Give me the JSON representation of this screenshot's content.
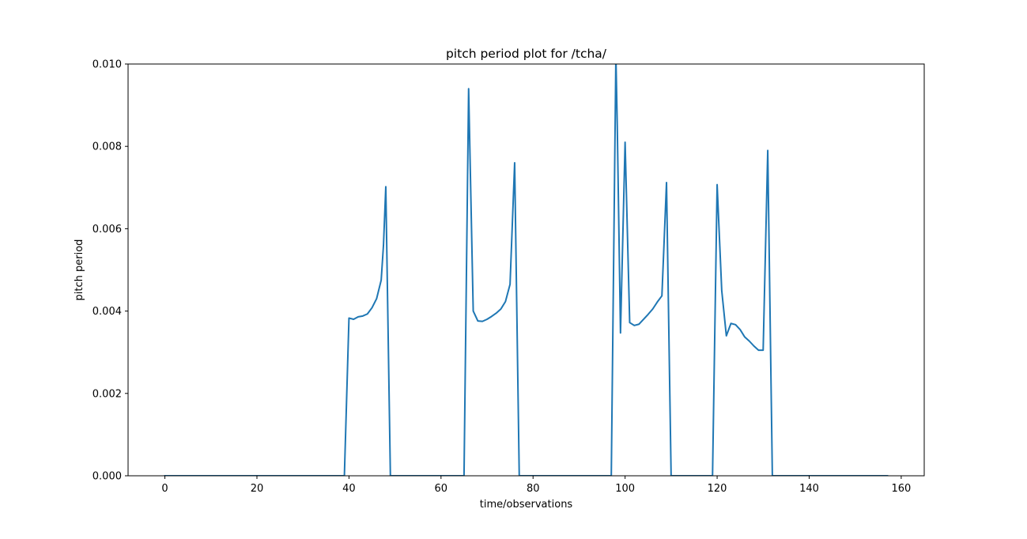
{
  "chart_data": {
    "type": "line",
    "title": "pitch period plot for /tcha/",
    "xlabel": "time/observations",
    "ylabel": "pitch period",
    "xlim": [
      -8,
      165
    ],
    "ylim": [
      0,
      0.01
    ],
    "xticks": [
      0,
      20,
      40,
      60,
      80,
      100,
      120,
      140,
      160
    ],
    "xtick_labels": [
      "0",
      "20",
      "40",
      "60",
      "80",
      "100",
      "120",
      "140",
      "160"
    ],
    "yticks": [
      0,
      0.002,
      0.004,
      0.006,
      0.008,
      0.01
    ],
    "ytick_labels": [
      "0.000",
      "0.002",
      "0.004",
      "0.006",
      "0.008",
      "0.010"
    ],
    "grid": false,
    "legend": "none",
    "line_color": "#1f77b4",
    "series": [
      {
        "x": [
          0,
          39,
          40,
          41,
          42,
          43,
          44,
          45,
          46,
          47,
          47.5,
          48,
          49,
          65,
          66,
          67,
          68,
          69,
          70,
          71,
          72,
          73,
          74,
          75,
          76,
          77,
          97,
          98,
          98.3,
          99,
          100,
          101,
          102,
          103,
          104,
          105,
          106,
          107,
          108,
          109,
          110,
          119,
          120,
          121,
          122,
          123,
          124,
          125,
          126,
          127,
          128,
          129,
          130,
          131,
          132,
          157
        ],
        "y": [
          0,
          0,
          0.00383,
          0.0038,
          0.00386,
          0.00388,
          0.00393,
          0.00408,
          0.0043,
          0.00475,
          0.0056,
          0.00702,
          0,
          0,
          0.0094,
          0.004,
          0.00376,
          0.00375,
          0.0038,
          0.00387,
          0.00395,
          0.00405,
          0.00423,
          0.00465,
          0.0076,
          0,
          0,
          0.0102,
          0.0085,
          0.00347,
          0.0081,
          0.00372,
          0.00365,
          0.00368,
          0.0038,
          0.00392,
          0.00405,
          0.00422,
          0.00437,
          0.00712,
          0,
          0,
          0.00707,
          0.0045,
          0.0034,
          0.0037,
          0.00367,
          0.00355,
          0.00337,
          0.00327,
          0.00315,
          0.00305,
          0.00305,
          0.0079,
          0,
          0
        ]
      }
    ]
  }
}
